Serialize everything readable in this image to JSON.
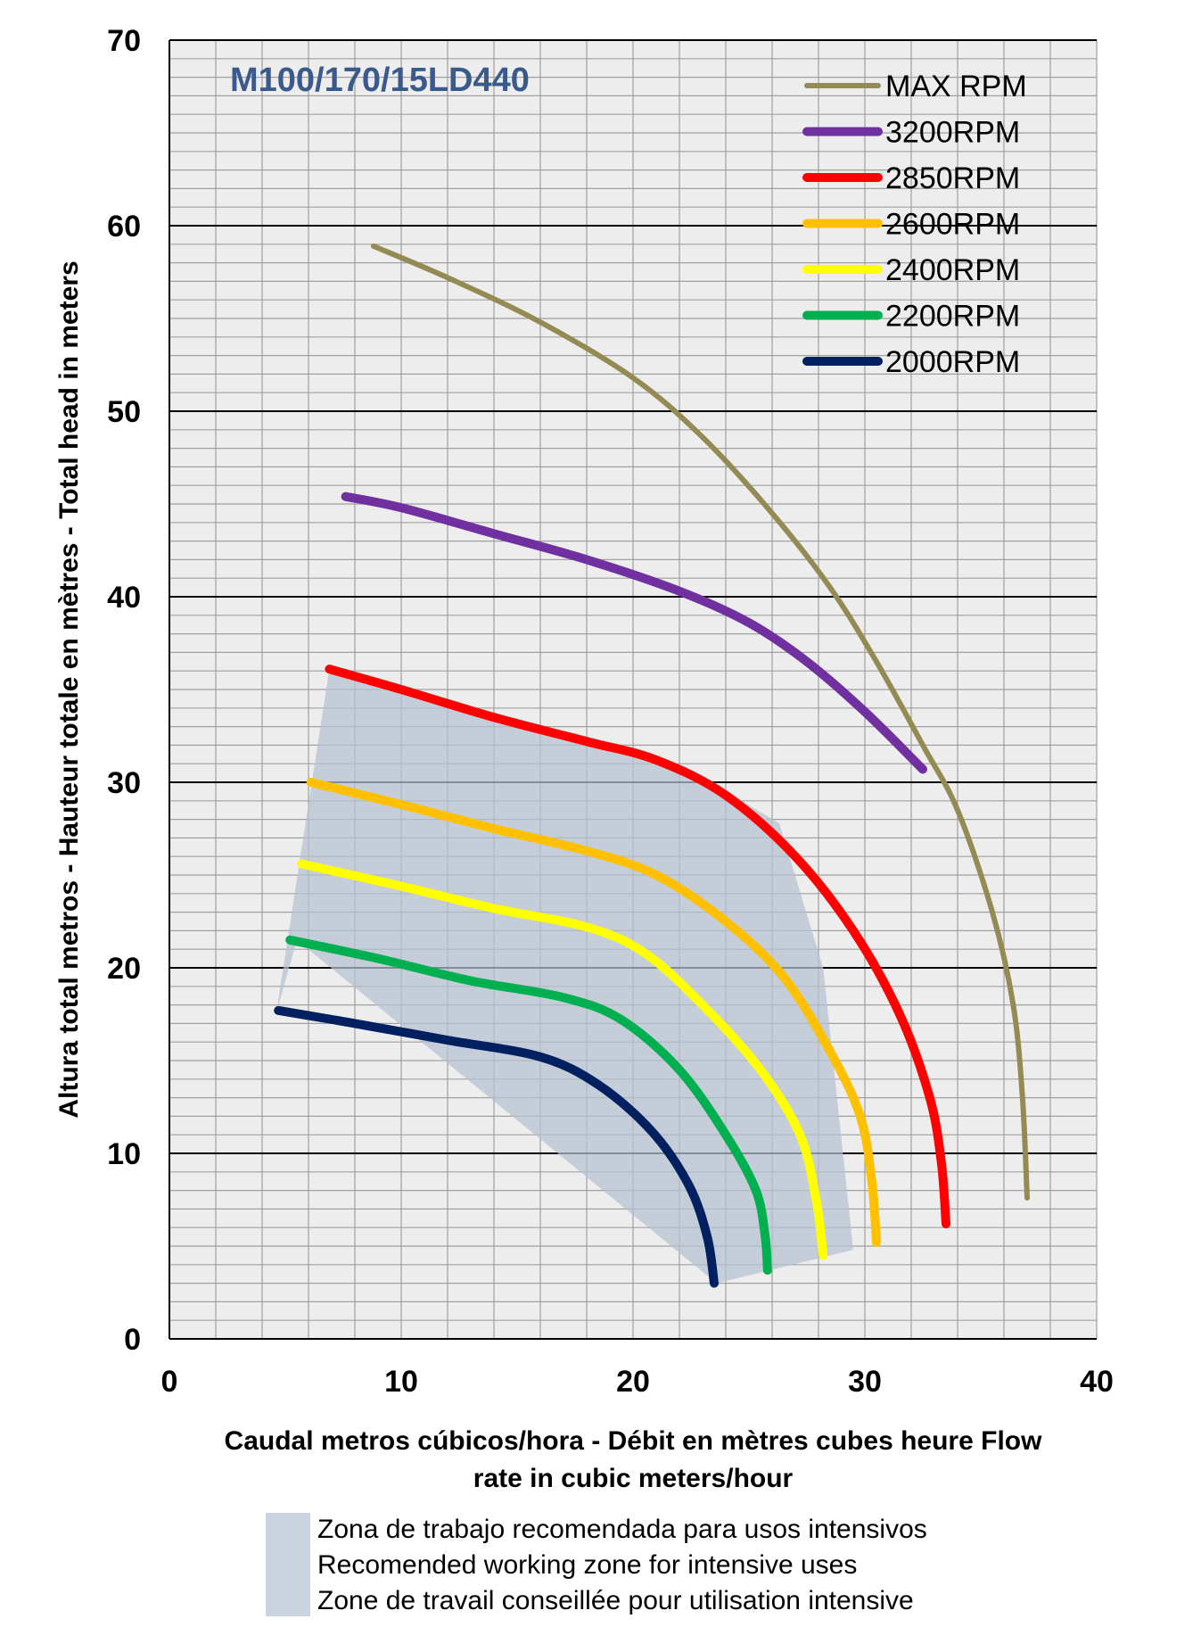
{
  "chart_data": {
    "type": "line",
    "title": "M100/170/15LD440",
    "title_color": "#3b5a8c",
    "xlabel_lines": [
      "Caudal metros cúbicos/hora - Débit en mètres cubes heure  Flow",
      "rate in cubic meters/hour"
    ],
    "ylabel": "Altura total metros - Hauteur totale en mètres - Total head in meters",
    "xlim": [
      0,
      40
    ],
    "ylim": [
      0,
      70
    ],
    "xticks": [
      0,
      10,
      20,
      30,
      40
    ],
    "yticks": [
      0,
      10,
      20,
      30,
      40,
      50,
      60,
      70
    ],
    "xtick_labels": [
      "0",
      "10",
      "20",
      "30",
      "40"
    ],
    "ytick_labels": [
      "0",
      "10",
      "20",
      "30",
      "40",
      "50",
      "60",
      "70"
    ],
    "grid": true,
    "legend_position": "top-right",
    "series": [
      {
        "name": "MAX RPM",
        "color": "#948a54",
        "x": [
          8.8,
          12,
          16,
          20,
          23,
          26,
          28.5,
          30.5,
          32.5,
          34,
          35.5,
          36.4,
          36.8,
          37
        ],
        "y": [
          58.9,
          57.2,
          54.8,
          51.8,
          48.6,
          44.5,
          40.5,
          36.5,
          32,
          28.5,
          23,
          18,
          13,
          7.6
        ]
      },
      {
        "name": "3200RPM",
        "color": "#7030a0",
        "x": [
          7.6,
          10,
          14,
          18,
          22,
          25,
          27.5,
          30,
          32.5
        ],
        "y": [
          45.4,
          44.8,
          43.4,
          42,
          40.3,
          38.6,
          36.5,
          33.8,
          30.7
        ]
      },
      {
        "name": "2850RPM",
        "color": "#ff0000",
        "x": [
          6.9,
          10,
          14,
          18,
          21,
          24,
          27,
          29.5,
          31.5,
          32.8,
          33.3,
          33.5
        ],
        "y": [
          36.1,
          35,
          33.5,
          32.2,
          31.2,
          29.3,
          26,
          22,
          17.5,
          13,
          9.5,
          6.2
        ]
      },
      {
        "name": "2600RPM",
        "color": "#ffc000",
        "x": [
          6.1,
          10,
          14,
          18,
          21,
          24,
          26.5,
          28.5,
          29.8,
          30.3,
          30.5
        ],
        "y": [
          30,
          28.8,
          27.5,
          26.3,
          25,
          22.5,
          19.5,
          15.5,
          12,
          8.5,
          5.2
        ]
      },
      {
        "name": "2400RPM",
        "color": "#ffff00",
        "x": [
          5.7,
          10,
          14,
          18,
          20.5,
          23,
          25.5,
          27.2,
          27.9,
          28.2
        ],
        "y": [
          25.6,
          24.4,
          23.2,
          22.2,
          20.8,
          18,
          14.5,
          11,
          7.5,
          4.5
        ]
      },
      {
        "name": "2200RPM",
        "color": "#00b050",
        "x": [
          5.2,
          9,
          13,
          17,
          19.5,
          22,
          24,
          25.3,
          25.7,
          25.8
        ],
        "y": [
          21.5,
          20.5,
          19.3,
          18.4,
          17.2,
          14.5,
          11,
          8,
          5.5,
          3.7
        ]
      },
      {
        "name": "2000RPM",
        "color": "#002060",
        "x": [
          4.7,
          8,
          12,
          16,
          18.5,
          20.8,
          22.4,
          23.2,
          23.5
        ],
        "y": [
          17.7,
          17,
          16.1,
          15.2,
          13.7,
          11.2,
          8.3,
          5.5,
          3
        ]
      }
    ],
    "zone": {
      "color": "#b4c0d0",
      "x": [
        4.6,
        6.9,
        22.5,
        26.3,
        28.2,
        29.5,
        23.6,
        5.5
      ],
      "y": [
        17.5,
        36.1,
        30.6,
        27.8,
        20,
        4.8,
        3,
        21.5
      ]
    }
  },
  "zone_legend": {
    "color": "#cad4e0",
    "lines": [
      "Zona de trabajo recomendada para usos intensivos",
      "Recomended working zone for intensive uses",
      "Zone de travail conseillée pour utilisation intensive"
    ]
  }
}
